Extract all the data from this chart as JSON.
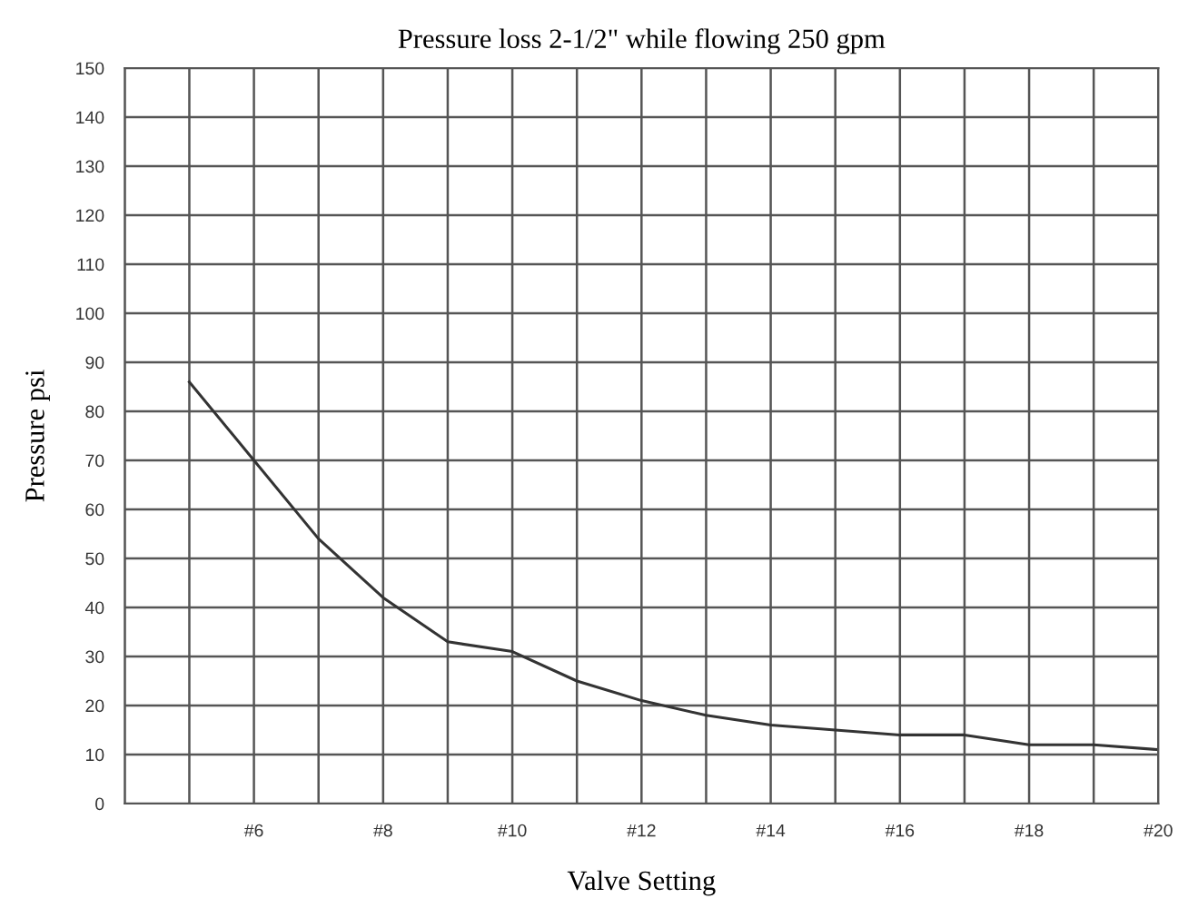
{
  "chart_data": {
    "type": "line",
    "title": "Pressure loss 2-1/2\" while flowing 250 gpm",
    "xlabel": "Valve Setting",
    "ylabel": "Pressure psi",
    "x": [
      5,
      6,
      7,
      8,
      9,
      10,
      11,
      12,
      13,
      14,
      15,
      16,
      17,
      18,
      19,
      20
    ],
    "series": [
      {
        "color": "#333333",
        "values": [
          86,
          70,
          54,
          42,
          33,
          31,
          25,
          21,
          18,
          16,
          15,
          14,
          14,
          12,
          12,
          11
        ]
      }
    ],
    "xlim": [
      4,
      20
    ],
    "xticks": [
      {
        "value": 4,
        "label": null
      },
      {
        "value": 5,
        "label": null
      },
      {
        "value": 6,
        "label": "#6"
      },
      {
        "value": 7,
        "label": null
      },
      {
        "value": 8,
        "label": "#8"
      },
      {
        "value": 9,
        "label": null
      },
      {
        "value": 10,
        "label": "#10"
      },
      {
        "value": 11,
        "label": null
      },
      {
        "value": 12,
        "label": "#12"
      },
      {
        "value": 13,
        "label": null
      },
      {
        "value": 14,
        "label": "#14"
      },
      {
        "value": 15,
        "label": null
      },
      {
        "value": 16,
        "label": "#16"
      },
      {
        "value": 17,
        "label": null
      },
      {
        "value": 18,
        "label": "#18"
      },
      {
        "value": 19,
        "label": null
      },
      {
        "value": 20,
        "label": "#20"
      }
    ],
    "ylim": [
      0,
      150
    ],
    "yticks": [
      0,
      10,
      20,
      30,
      40,
      50,
      60,
      70,
      80,
      90,
      100,
      110,
      120,
      130,
      140,
      150
    ],
    "grid": true,
    "marker": "none",
    "line_style": "solid"
  }
}
